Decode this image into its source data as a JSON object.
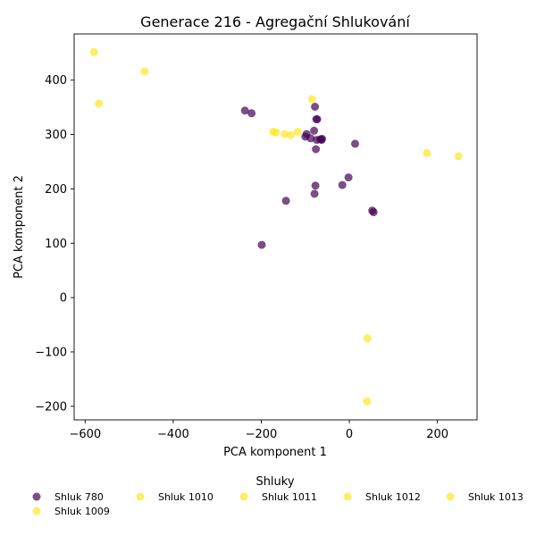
{
  "chart_data": {
    "type": "scatter",
    "title": "Generace 216 - Agregační Shlukování",
    "xlabel": "PCA komponent 1",
    "ylabel": "PCA komponent 2",
    "xlim": [
      -625,
      290
    ],
    "ylim": [
      -225,
      485
    ],
    "xticks": [
      -600,
      -400,
      -200,
      0,
      200
    ],
    "yticks": [
      -200,
      -100,
      0,
      100,
      200,
      300,
      400
    ],
    "xtick_labels": [
      "−600",
      "−400",
      "−200",
      "0",
      "200"
    ],
    "ytick_labels": [
      "−200",
      "−100",
      "0",
      "100",
      "200",
      "300",
      "400"
    ],
    "grid": false,
    "legend": {
      "title": "Shluky",
      "placement": "bottom-center",
      "entries": [
        {
          "name": "Shluk 780",
          "color": "#440154"
        },
        {
          "name": "Shluk 1010",
          "color": "#fde725"
        },
        {
          "name": "Shluk 1011",
          "color": "#fde725"
        },
        {
          "name": "Shluk 1012",
          "color": "#fde725"
        },
        {
          "name": "Shluk 1013",
          "color": "#fde725"
        },
        {
          "name": "Shluk 1009",
          "color": "#fde725"
        }
      ]
    },
    "series": [
      {
        "name": "Shluk 780",
        "color": "#440154",
        "points": [
          [
            -237,
            344
          ],
          [
            -222,
            339
          ],
          [
            -78,
            351
          ],
          [
            -73,
            328
          ],
          [
            -75,
            328
          ],
          [
            -80,
            307
          ],
          [
            -97,
            301
          ],
          [
            -100,
            296
          ],
          [
            -88,
            293
          ],
          [
            -74,
            290
          ],
          [
            -66,
            291
          ],
          [
            -62,
            292
          ],
          [
            -63,
            290
          ],
          [
            -76,
            273
          ],
          [
            13,
            283
          ],
          [
            -2,
            221
          ],
          [
            -16,
            207
          ],
          [
            -77,
            206
          ],
          [
            -79,
            191
          ],
          [
            -144,
            178
          ],
          [
            -199,
            97
          ],
          [
            52,
            160
          ],
          [
            55,
            157
          ]
        ]
      },
      {
        "name": "Shluk 1009",
        "color": "#fde725",
        "points": [
          [
            -580,
            452
          ],
          [
            -465,
            416
          ],
          [
            -569,
            357
          ],
          [
            -85,
            365
          ],
          [
            -173,
            305
          ],
          [
            -167,
            304
          ],
          [
            -147,
            301
          ],
          [
            -133,
            299
          ],
          [
            -117,
            305
          ],
          [
            176,
            266
          ],
          [
            248,
            260
          ],
          [
            41,
            -75
          ],
          [
            40,
            -191
          ]
        ]
      }
    ]
  }
}
